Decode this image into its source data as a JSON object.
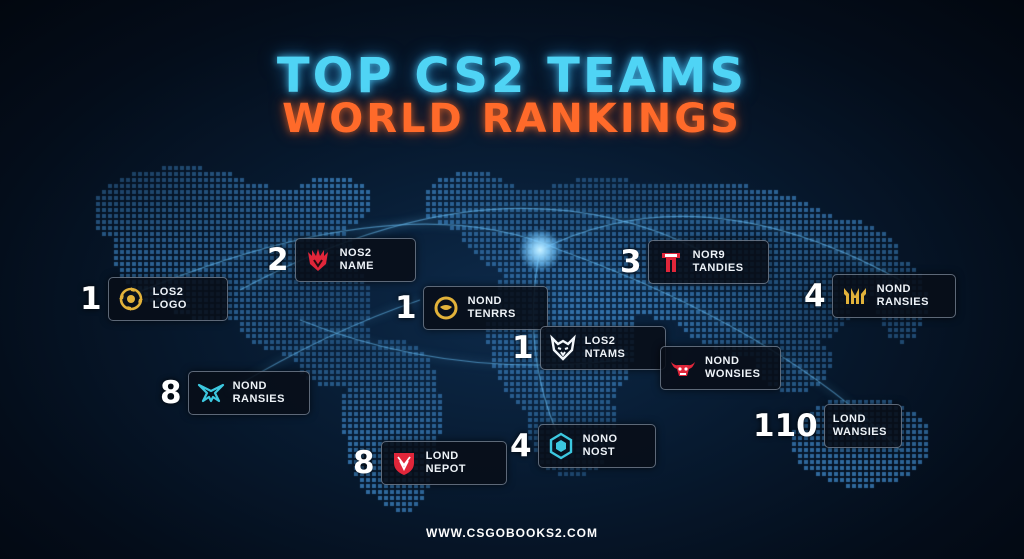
{
  "header": {
    "title_line1": "TOP CS2 TEAMS",
    "title_line2": "WORLD RANKINGS"
  },
  "colors": {
    "title_primary": "#4fd4f5",
    "title_secondary": "#ff6a2a",
    "map_dots": "#3f8fd0",
    "arc": "#6fc8ff"
  },
  "teams": [
    {
      "rank": "1",
      "line1": "LOS2",
      "line2": "LOGO",
      "icon": "gold-spiral-icon"
    },
    {
      "rank": "2",
      "line1": "NOS2",
      "line2": "NAME",
      "icon": "red-claw-icon"
    },
    {
      "rank": "1",
      "line1": "NOND",
      "line2": "TENRRS",
      "icon": "gold-circle-icon"
    },
    {
      "rank": "3",
      "line1": "NOR9",
      "line2": "TANDIES",
      "icon": "red-helmet-icon"
    },
    {
      "rank": "4",
      "line1": "NOND",
      "line2": "RANSIES",
      "icon": "gold-crown-icon"
    },
    {
      "rank": "1",
      "line1": "LOS2",
      "line2": "NTAMS",
      "icon": "white-wolf-icon"
    },
    {
      "rank": "",
      "line1": "NOND",
      "line2": "WONSIES",
      "icon": "red-bull-icon"
    },
    {
      "rank": "8",
      "line1": "NOND",
      "line2": "RANSIES",
      "icon": "cyan-wings-icon"
    },
    {
      "rank": "110",
      "line1": "LOND",
      "line2": "WANSIES",
      "icon": ""
    },
    {
      "rank": "4",
      "line1": "NONO",
      "line2": "NOST",
      "icon": "cyan-hexagon-icon"
    },
    {
      "rank": "8",
      "line1": "LOND",
      "line2": "NEPOT",
      "icon": "red-shield-icon"
    }
  ],
  "footer": {
    "url": "WWW.CSGOBOOKS2.COM"
  }
}
